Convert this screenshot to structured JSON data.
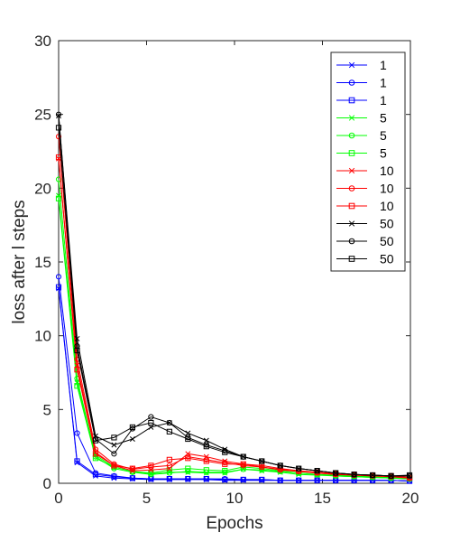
{
  "chart_data": {
    "type": "line",
    "title": "",
    "xlabel": "Epochs",
    "ylabel": "loss after l steps",
    "xlim": [
      0,
      20
    ],
    "ylim": [
      0,
      30
    ],
    "xticks": [
      "0",
      "5",
      "10",
      "15",
      "20"
    ],
    "yticks": [
      "0",
      "5",
      "10",
      "15",
      "20",
      "25",
      "30"
    ],
    "grid": false,
    "legend_position": "top-right",
    "x": [
      0,
      1.05,
      2.1,
      3.15,
      4.2,
      5.25,
      6.3,
      7.35,
      8.4,
      9.45,
      10.5,
      11.55,
      12.6,
      13.65,
      14.7,
      15.75,
      16.8,
      17.85,
      18.9,
      19.95
    ],
    "series": [
      {
        "name": "1",
        "color": "#0000ff",
        "marker": "x",
        "values": [
          13.2,
          1.4,
          0.5,
          0.35,
          0.3,
          0.25,
          0.25,
          0.25,
          0.25,
          0.2,
          0.2,
          0.2,
          0.2,
          0.2,
          0.2,
          0.2,
          0.2,
          0.2,
          0.2,
          0.15
        ]
      },
      {
        "name": "1",
        "color": "#0000ff",
        "marker": "o",
        "values": [
          14.0,
          3.4,
          0.7,
          0.5,
          0.35,
          0.3,
          0.3,
          0.3,
          0.3,
          0.3,
          0.25,
          0.25,
          0.2,
          0.2,
          0.2,
          0.2,
          0.2,
          0.2,
          0.2,
          0.15
        ]
      },
      {
        "name": "1",
        "color": "#0000ff",
        "marker": "s",
        "values": [
          13.3,
          1.5,
          0.6,
          0.45,
          0.35,
          0.3,
          0.3,
          0.3,
          0.3,
          0.25,
          0.25,
          0.25,
          0.2,
          0.2,
          0.2,
          0.2,
          0.2,
          0.2,
          0.2,
          0.15
        ]
      },
      {
        "name": "5",
        "color": "#00ff00",
        "marker": "x",
        "values": [
          19.5,
          6.8,
          1.9,
          1.1,
          0.8,
          0.65,
          0.75,
          0.75,
          0.7,
          0.7,
          0.95,
          0.85,
          0.75,
          0.6,
          0.55,
          0.5,
          0.45,
          0.4,
          0.35,
          0.3
        ]
      },
      {
        "name": "5",
        "color": "#00ff00",
        "marker": "o",
        "values": [
          20.6,
          7.1,
          1.8,
          1.0,
          0.75,
          0.6,
          0.7,
          0.8,
          0.75,
          0.75,
          0.95,
          0.9,
          0.8,
          0.7,
          0.6,
          0.5,
          0.45,
          0.4,
          0.35,
          0.3
        ]
      },
      {
        "name": "5",
        "color": "#00ff00",
        "marker": "s",
        "values": [
          19.3,
          6.6,
          1.7,
          1.1,
          0.8,
          0.7,
          0.9,
          1.0,
          0.9,
          0.85,
          1.1,
          1.0,
          0.85,
          0.7,
          0.6,
          0.55,
          0.5,
          0.45,
          0.4,
          0.35
        ]
      },
      {
        "name": "10",
        "color": "#ff0000",
        "marker": "x",
        "values": [
          22.0,
          8.0,
          2.1,
          1.2,
          0.85,
          0.9,
          1.0,
          2.0,
          1.8,
          1.5,
          1.3,
          1.1,
          0.95,
          0.8,
          0.7,
          0.6,
          0.55,
          0.5,
          0.45,
          0.35
        ]
      },
      {
        "name": "10",
        "color": "#ff0000",
        "marker": "o",
        "values": [
          23.5,
          8.4,
          2.3,
          1.3,
          0.95,
          1.1,
          1.2,
          1.8,
          1.6,
          1.4,
          1.2,
          1.1,
          0.9,
          0.8,
          0.7,
          0.6,
          0.55,
          0.5,
          0.45,
          0.35
        ]
      },
      {
        "name": "10",
        "color": "#ff0000",
        "marker": "s",
        "values": [
          22.1,
          7.7,
          2.0,
          1.2,
          1.0,
          1.2,
          1.6,
          1.7,
          1.5,
          1.3,
          1.3,
          1.2,
          1.0,
          0.85,
          0.75,
          0.65,
          0.6,
          0.55,
          0.5,
          0.4
        ]
      },
      {
        "name": "50",
        "color": "#000000",
        "marker": "x",
        "values": [
          24.9,
          9.8,
          3.2,
          2.6,
          3.0,
          3.8,
          4.1,
          3.4,
          2.9,
          2.3,
          1.8,
          1.5,
          1.2,
          1.0,
          0.85,
          0.7,
          0.6,
          0.55,
          0.5,
          0.5
        ]
      },
      {
        "name": "50",
        "color": "#000000",
        "marker": "o",
        "values": [
          25.0,
          9.3,
          3.0,
          2.0,
          3.7,
          4.5,
          4.1,
          3.1,
          2.6,
          2.2,
          1.8,
          1.5,
          1.2,
          1.0,
          0.85,
          0.7,
          0.6,
          0.55,
          0.5,
          0.5
        ]
      },
      {
        "name": "50",
        "color": "#000000",
        "marker": "s",
        "values": [
          24.1,
          9.0,
          2.9,
          3.1,
          3.8,
          4.1,
          3.5,
          3.0,
          2.5,
          2.1,
          1.8,
          1.5,
          1.2,
          1.0,
          0.85,
          0.7,
          0.6,
          0.55,
          0.5,
          0.55
        ]
      }
    ]
  }
}
